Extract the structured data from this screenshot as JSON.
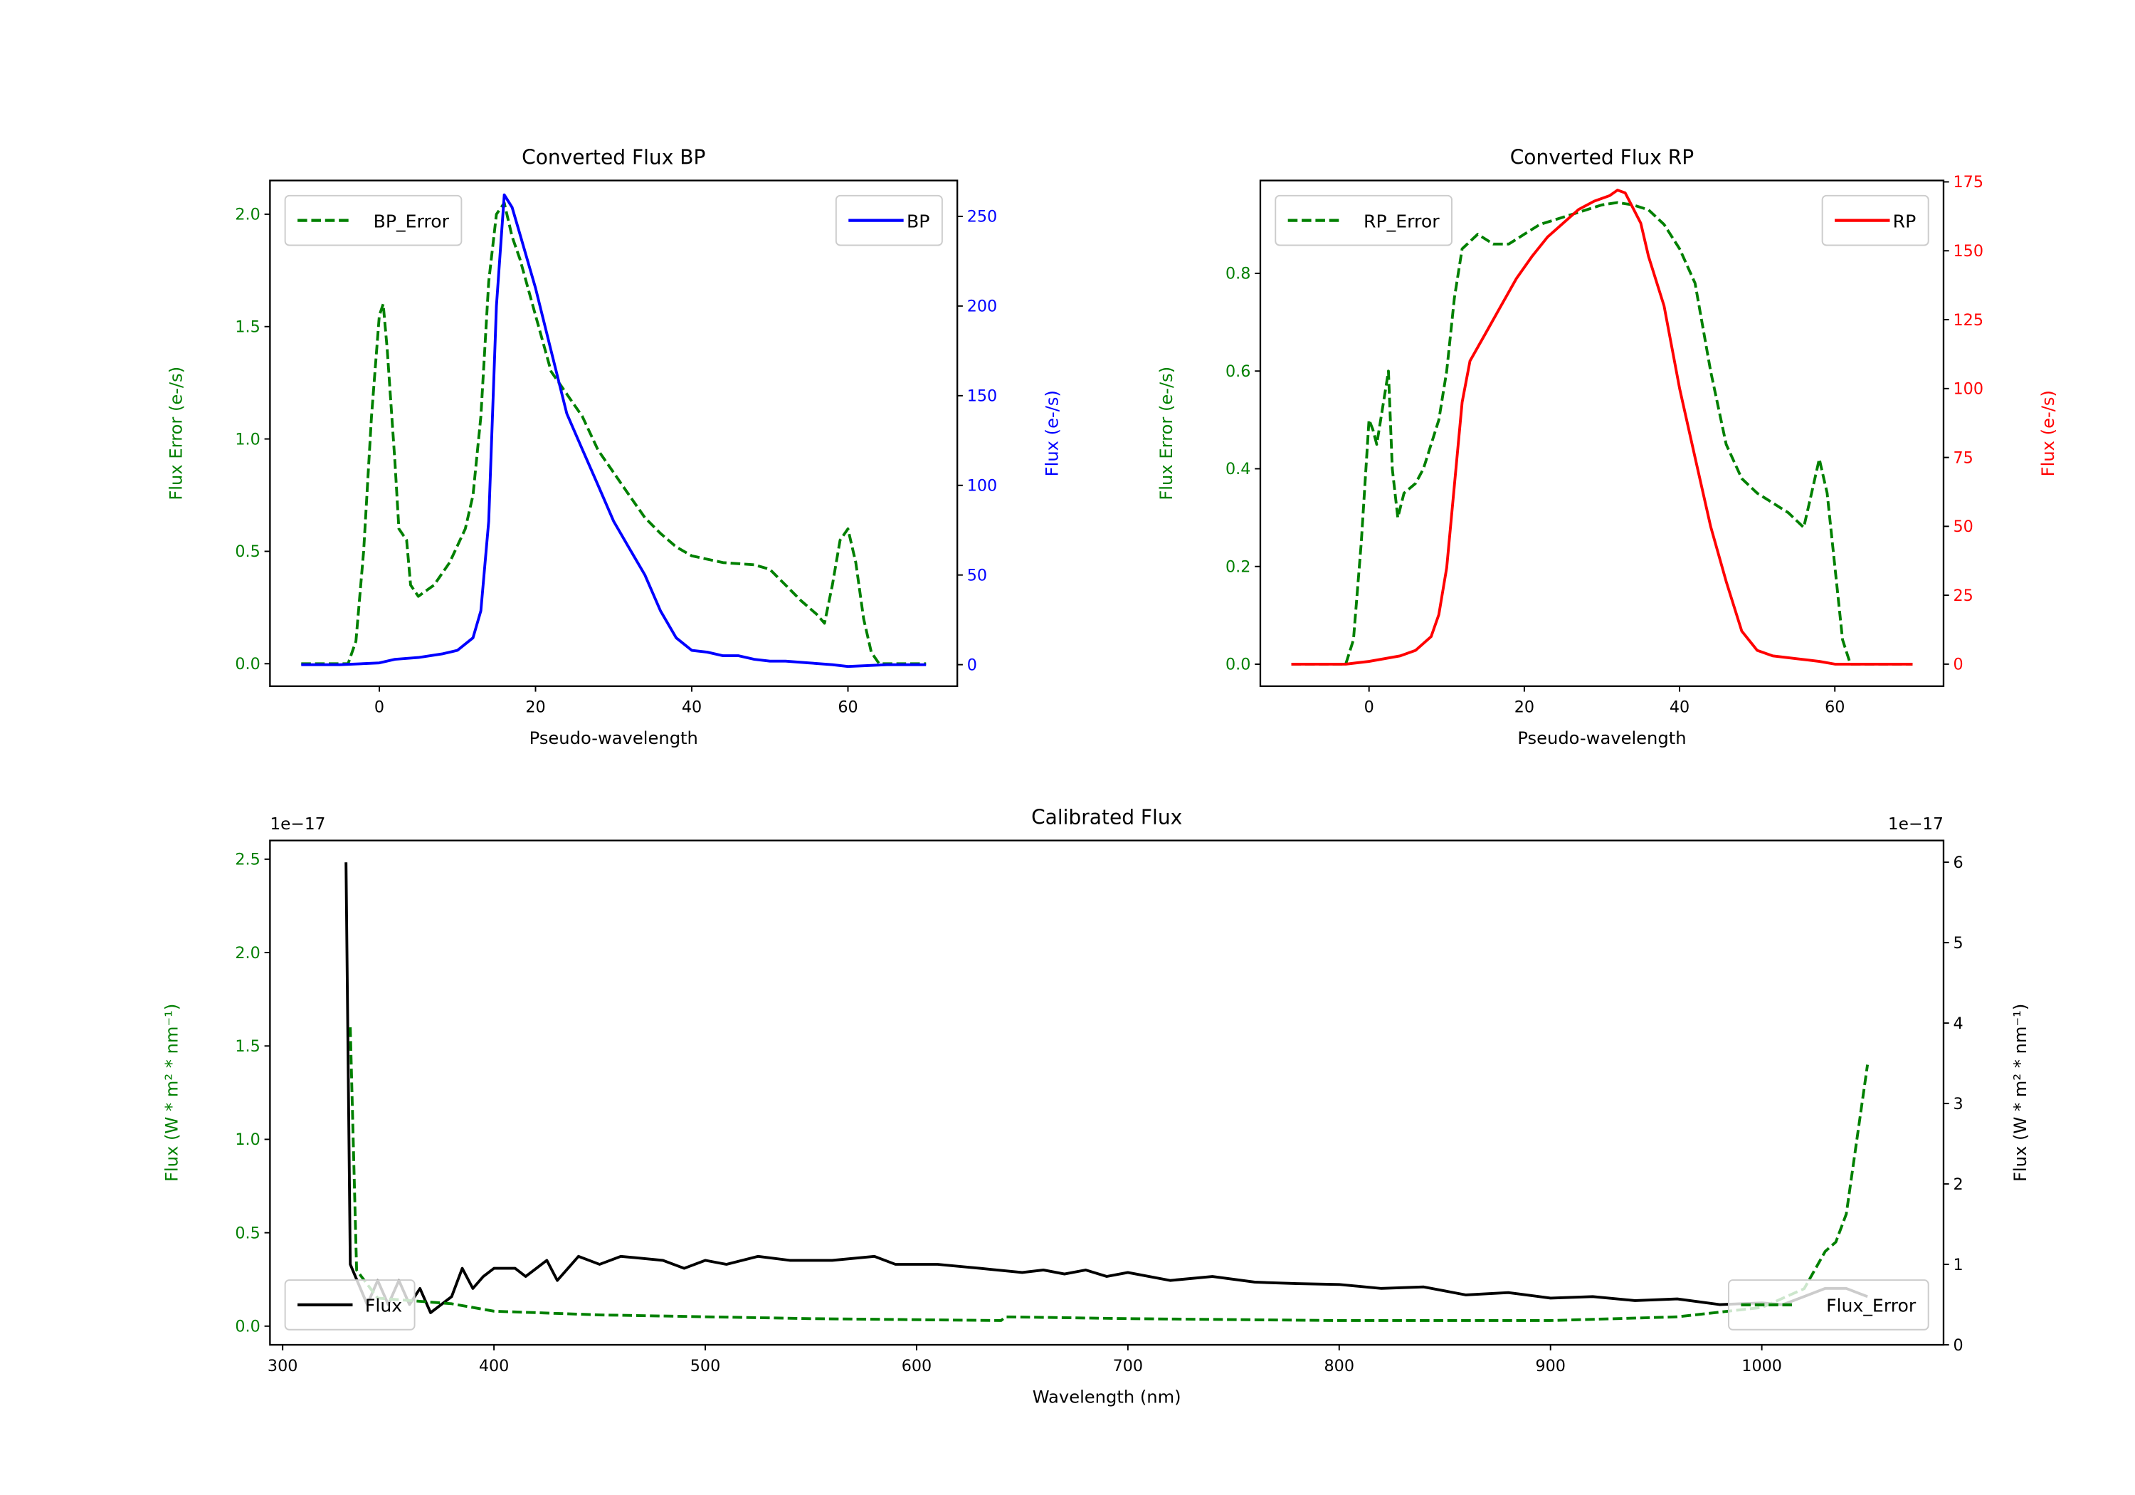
{
  "chart_data": [
    {
      "type": "line",
      "title": "Converted Flux BP",
      "xlabel": "Pseudo-wavelength",
      "ylabel_left": "Flux Error (e-/s)",
      "ylabel_right": "Flux (e-/s)",
      "xlim": [
        -14,
        74
      ],
      "ylim_left": [
        -0.1,
        2.15
      ],
      "ylim_right": [
        -12,
        270
      ],
      "xticks": [
        0,
        20,
        40,
        60
      ],
      "yticks_left": [
        "0.0",
        "0.5",
        "1.0",
        "1.5",
        "2.0"
      ],
      "yticks_right": [
        "0",
        "50",
        "100",
        "150",
        "200",
        "250"
      ],
      "left_color": "#008000",
      "right_color": "#0000ff",
      "series": [
        {
          "name": "BP_Error",
          "axis": "left",
          "style": "dashed",
          "color": "#008000",
          "legend": "top-left",
          "x": [
            -10,
            -4,
            -3,
            -2,
            -1,
            0,
            0.5,
            1,
            2,
            2.5,
            3.5,
            4,
            5,
            7,
            9,
            11,
            12,
            13,
            14,
            15,
            16,
            17,
            18,
            20,
            22,
            24,
            26,
            28,
            30,
            32,
            34,
            36,
            38,
            40,
            44,
            48,
            50,
            52,
            54,
            56,
            57,
            58,
            59,
            60,
            61,
            62,
            63,
            64,
            70
          ],
          "y": [
            0,
            0,
            0.1,
            0.5,
            1.1,
            1.55,
            1.6,
            1.4,
            0.9,
            0.6,
            0.55,
            0.35,
            0.3,
            0.35,
            0.45,
            0.6,
            0.75,
            1.1,
            1.7,
            2.0,
            2.05,
            1.9,
            1.8,
            1.55,
            1.3,
            1.2,
            1.1,
            0.95,
            0.85,
            0.75,
            0.65,
            0.58,
            0.52,
            0.48,
            0.45,
            0.44,
            0.42,
            0.35,
            0.28,
            0.22,
            0.18,
            0.35,
            0.55,
            0.6,
            0.45,
            0.2,
            0.05,
            0,
            0
          ]
        },
        {
          "name": "BP",
          "axis": "right",
          "style": "solid",
          "color": "#0000ff",
          "legend": "top-right",
          "x": [
            -10,
            -5,
            0,
            2,
            5,
            8,
            10,
            12,
            13,
            14,
            15,
            16,
            17,
            18,
            20,
            22,
            24,
            26,
            28,
            30,
            32,
            34,
            36,
            38,
            40,
            42,
            44,
            46,
            48,
            50,
            52,
            55,
            58,
            60,
            65,
            70
          ],
          "y": [
            0,
            0,
            1,
            3,
            4,
            6,
            8,
            15,
            30,
            80,
            200,
            262,
            255,
            240,
            210,
            175,
            140,
            120,
            100,
            80,
            65,
            50,
            30,
            15,
            8,
            7,
            5,
            5,
            3,
            2,
            2,
            1,
            0,
            -1,
            0,
            0
          ]
        }
      ]
    },
    {
      "type": "line",
      "title": "Converted Flux RP",
      "xlabel": "Pseudo-wavelength",
      "ylabel_left": "Flux Error (e-/s)",
      "ylabel_right": "Flux (e-/s)",
      "xlim": [
        -14,
        74
      ],
      "ylim_left": [
        -0.045,
        0.99
      ],
      "ylim_right": [
        -8,
        175.5
      ],
      "xticks": [
        0,
        20,
        40,
        60
      ],
      "yticks_left": [
        "0.0",
        "0.2",
        "0.4",
        "0.6",
        "0.8"
      ],
      "yticks_right": [
        "0",
        "25",
        "50",
        "75",
        "100",
        "125",
        "150",
        "175"
      ],
      "left_color": "#008000",
      "right_color": "#ff0000",
      "series": [
        {
          "name": "RP_Error",
          "axis": "left",
          "style": "dashed",
          "color": "#008000",
          "legend": "top-left",
          "x": [
            -10,
            -3,
            -2,
            -1,
            0,
            0.5,
            1,
            2,
            2.5,
            3,
            3.7,
            4.5,
            6,
            7,
            9,
            10,
            11,
            12,
            14,
            16,
            18,
            20,
            22,
            24,
            26,
            28,
            30,
            32,
            34,
            36,
            38,
            40,
            42,
            44,
            46,
            48,
            50,
            52,
            54,
            56,
            57,
            58,
            59,
            60,
            61,
            62,
            64,
            70
          ],
          "y": [
            0,
            0,
            0.05,
            0.25,
            0.5,
            0.48,
            0.45,
            0.55,
            0.6,
            0.4,
            0.3,
            0.35,
            0.37,
            0.4,
            0.5,
            0.6,
            0.75,
            0.85,
            0.88,
            0.86,
            0.86,
            0.88,
            0.9,
            0.91,
            0.92,
            0.93,
            0.94,
            0.945,
            0.94,
            0.93,
            0.9,
            0.85,
            0.78,
            0.6,
            0.45,
            0.38,
            0.35,
            0.33,
            0.31,
            0.28,
            0.35,
            0.42,
            0.35,
            0.2,
            0.05,
            0,
            0,
            0
          ]
        },
        {
          "name": "RP",
          "axis": "right",
          "style": "solid",
          "color": "#ff0000",
          "legend": "top-right",
          "x": [
            -10,
            -3,
            0,
            2,
            4,
            6,
            8,
            9,
            10,
            11,
            12,
            13,
            15,
            17,
            19,
            21,
            23,
            25,
            27,
            29,
            31,
            32,
            33,
            35,
            36,
            38,
            40,
            42,
            44,
            46,
            48,
            50,
            52,
            55,
            58,
            60,
            70
          ],
          "y": [
            0,
            0,
            1,
            2,
            3,
            5,
            10,
            18,
            35,
            65,
            95,
            110,
            120,
            130,
            140,
            148,
            155,
            160,
            165,
            168,
            170,
            172,
            171,
            160,
            148,
            130,
            100,
            75,
            50,
            30,
            12,
            5,
            3,
            2,
            1,
            0,
            0
          ]
        }
      ]
    },
    {
      "type": "line",
      "title": "Calibrated Flux",
      "xlabel": "Wavelength (nm)",
      "ylabel_left": "Flux (W * m² * nm⁻¹)",
      "ylabel_right": "Flux (W * m² * nm⁻¹)",
      "offset_left": "1e−17",
      "offset_right": "1e−17",
      "xlim": [
        294,
        1086
      ],
      "ylim_left": [
        -0.1,
        2.6
      ],
      "ylim_right": [
        0,
        6.27
      ],
      "xticks": [
        300,
        400,
        500,
        600,
        700,
        800,
        900,
        1000
      ],
      "yticks_left": [
        "0.0",
        "0.5",
        "1.0",
        "1.5",
        "2.0",
        "2.5"
      ],
      "yticks_right": [
        "0",
        "1",
        "2",
        "3",
        "4",
        "5",
        "6"
      ],
      "left_color": "#008000",
      "right_color": "#000000",
      "series": [
        {
          "name": "Flux",
          "axis": "right",
          "style": "solid",
          "color": "#000000",
          "legend": "lower-left",
          "x": [
            330,
            332,
            340,
            345,
            350,
            355,
            360,
            365,
            370,
            380,
            385,
            390,
            395,
            400,
            410,
            415,
            425,
            430,
            440,
            450,
            460,
            480,
            490,
            500,
            510,
            525,
            540,
            560,
            580,
            590,
            610,
            630,
            650,
            660,
            670,
            680,
            690,
            700,
            720,
            740,
            760,
            780,
            800,
            820,
            840,
            860,
            880,
            900,
            920,
            940,
            960,
            980,
            1000,
            1010,
            1030,
            1040,
            1050
          ],
          "y": [
            6.0,
            1.0,
            0.5,
            0.8,
            0.5,
            0.8,
            0.5,
            0.7,
            0.4,
            0.6,
            0.95,
            0.7,
            0.85,
            0.95,
            0.95,
            0.85,
            1.05,
            0.8,
            1.1,
            1.0,
            1.1,
            1.05,
            0.95,
            1.05,
            1.0,
            1.1,
            1.05,
            1.05,
            1.1,
            1.0,
            1.0,
            0.95,
            0.9,
            0.93,
            0.88,
            0.93,
            0.85,
            0.9,
            0.8,
            0.85,
            0.78,
            0.76,
            0.75,
            0.7,
            0.72,
            0.62,
            0.65,
            0.58,
            0.6,
            0.55,
            0.57,
            0.5,
            0.52,
            0.5,
            0.7,
            0.7,
            0.6
          ]
        },
        {
          "name": "Flux_Error",
          "axis": "left",
          "style": "dashed",
          "color": "#008000",
          "legend": "lower-right",
          "x": [
            332,
            335,
            345,
            380,
            390,
            400,
            450,
            550,
            640,
            642,
            700,
            800,
            900,
            960,
            1000,
            1020,
            1030,
            1035,
            1040,
            1045,
            1050
          ],
          "y": [
            1.6,
            0.3,
            0.15,
            0.12,
            0.1,
            0.08,
            0.06,
            0.04,
            0.03,
            0.05,
            0.04,
            0.03,
            0.03,
            0.05,
            0.1,
            0.2,
            0.4,
            0.45,
            0.6,
            1.0,
            1.4
          ]
        }
      ]
    }
  ]
}
